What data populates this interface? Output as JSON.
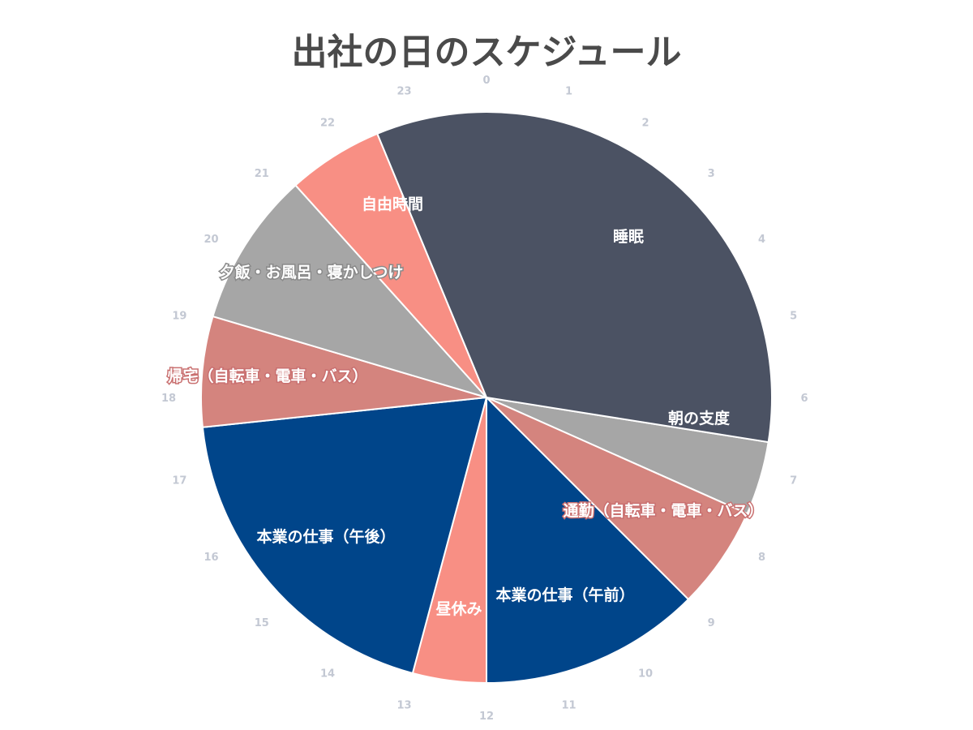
{
  "title": "出社の日のスケジュール",
  "chart_data": {
    "type": "pie",
    "title": "出社の日のスケジュール",
    "unit": "hours",
    "start_angle_hour": 0,
    "hour_ticks": [
      "0",
      "1",
      "2",
      "3",
      "4",
      "5",
      "6",
      "7",
      "8",
      "9",
      "10",
      "11",
      "12",
      "13",
      "14",
      "15",
      "16",
      "17",
      "18",
      "19",
      "20",
      "21",
      "22",
      "23"
    ],
    "slices": [
      {
        "label": "睡眠",
        "start": 0,
        "end": 6.6,
        "color": "#4b5263"
      },
      {
        "label": "朝の支度",
        "start": 6.6,
        "end": 7.6,
        "color": "#a6a6a6"
      },
      {
        "label": "通勤（自転車・電車・バス）",
        "start": 7.6,
        "end": 9.0,
        "color": "#d4847e"
      },
      {
        "label": "本業の仕事（午前）",
        "start": 9.0,
        "end": 12.0,
        "color": "#00458a"
      },
      {
        "label": "昼休み",
        "start": 12.0,
        "end": 13.0,
        "color": "#f88f84"
      },
      {
        "label": "本業の仕事（午後）",
        "start": 13.0,
        "end": 17.6,
        "color": "#00458a"
      },
      {
        "label": "帰宅（自転車・電車・バス）",
        "start": 17.6,
        "end": 19.1,
        "color": "#d4847e"
      },
      {
        "label": "夕飯・お風呂・寝かしつけ",
        "start": 19.1,
        "end": 21.2,
        "color": "#a6a6a6"
      },
      {
        "label": "自由時間",
        "start": 21.2,
        "end": 22.5,
        "color": "#f88f84"
      },
      {
        "label": "睡眠",
        "start": 22.5,
        "end": 24.0,
        "color": "#4b5263"
      }
    ]
  }
}
